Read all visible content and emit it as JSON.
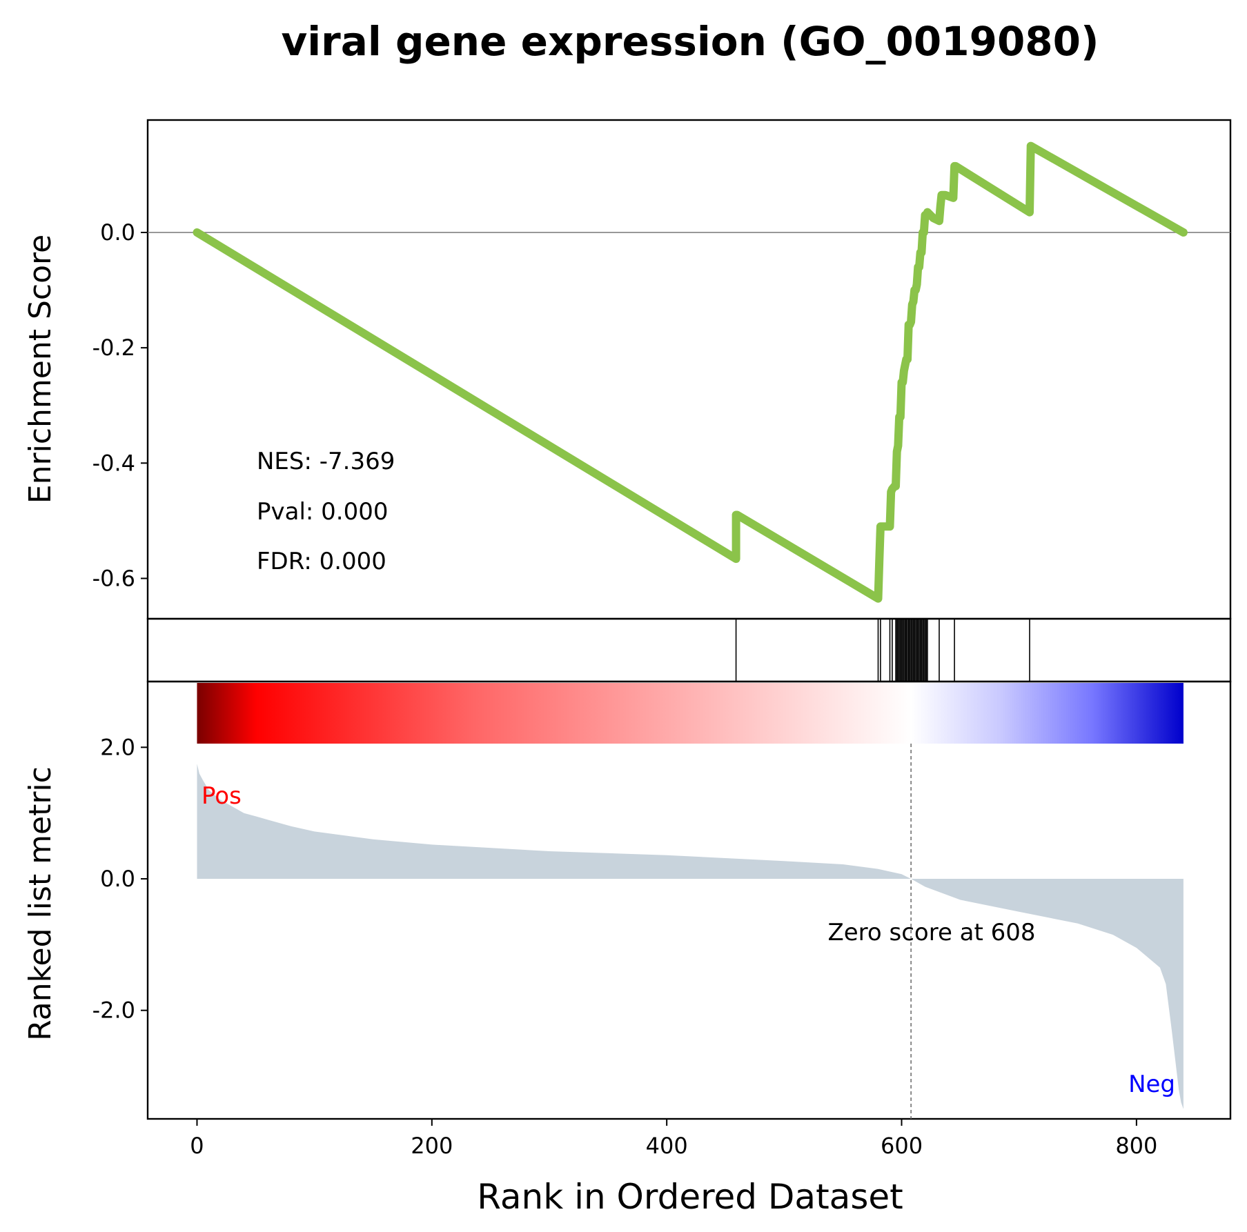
{
  "chart_data": {
    "type": "line",
    "title": "viral gene expression (GO_0019080)",
    "xlabel": "Rank in Ordered Dataset",
    "xlim": [
      -42,
      880
    ],
    "xticks": [
      "0",
      "200",
      "400",
      "600",
      "800"
    ],
    "n_genes": 840,
    "es_panel": {
      "ylabel": "Enrichment Score",
      "ylim": [
        -0.67,
        0.195
      ],
      "yticks": [
        "0.0",
        "-0.2",
        "-0.4",
        "-0.6"
      ],
      "color": "#8bc34a",
      "series": {
        "name": "",
        "x": [
          0,
          459,
          459,
          460,
          580,
          580,
          581,
          582,
          582,
          583,
          590,
          591,
          592,
          592,
          594,
          595,
          596,
          596,
          597,
          598,
          599,
          600,
          601,
          602,
          603,
          604,
          605,
          606,
          607,
          608,
          609,
          610,
          611,
          612,
          613,
          614,
          615,
          616,
          617,
          618,
          619,
          620,
          621,
          622,
          627,
          632,
          633,
          634,
          637,
          644,
          645,
          646,
          646,
          709,
          709,
          710,
          840
        ],
        "y": [
          0.0,
          -0.566,
          -0.49,
          -0.49,
          -0.635,
          -0.635,
          -0.57,
          -0.51,
          -0.51,
          -0.51,
          -0.51,
          -0.45,
          -0.445,
          -0.445,
          -0.44,
          -0.44,
          -0.38,
          -0.38,
          -0.37,
          -0.32,
          -0.32,
          -0.26,
          -0.26,
          -0.24,
          -0.23,
          -0.22,
          -0.22,
          -0.16,
          -0.16,
          -0.155,
          -0.125,
          -0.12,
          -0.1,
          -0.1,
          -0.09,
          -0.06,
          -0.06,
          -0.035,
          -0.035,
          0.0,
          0.0,
          0.03,
          0.03,
          0.035,
          0.025,
          0.02,
          0.045,
          0.065,
          0.065,
          0.06,
          0.115,
          0.115,
          0.115,
          0.035,
          0.035,
          0.15,
          0.0
        ]
      },
      "zero_line": 0.0,
      "annotations": [
        "NES: -7.369",
        "Pval: 0.000",
        "FDR: 0.000"
      ]
    },
    "hits_panel": {
      "hit_ranks": [
        459,
        580,
        582,
        590,
        592,
        595,
        596,
        597,
        598,
        599,
        600,
        601,
        602,
        603,
        604,
        605,
        606,
        607,
        608,
        609,
        610,
        611,
        612,
        613,
        614,
        615,
        616,
        617,
        618,
        619,
        620,
        621,
        622,
        632,
        645,
        709
      ]
    },
    "rank_panel": {
      "ylabel": "Ranked list metric",
      "ylim": [
        -3.65,
        3.0
      ],
      "yticks": [
        "2.0",
        "0.0",
        "-2.0"
      ],
      "area_color": "#c8d3dc",
      "metric_x": [
        0,
        2,
        5,
        10,
        20,
        30,
        40,
        50,
        60,
        80,
        100,
        150,
        200,
        300,
        400,
        500,
        550,
        580,
        600,
        608,
        620,
        650,
        700,
        750,
        780,
        800,
        810,
        820,
        825,
        830,
        832,
        834,
        836,
        838,
        840
      ],
      "metric_y": [
        1.75,
        1.6,
        1.5,
        1.35,
        1.2,
        1.1,
        1.0,
        0.95,
        0.9,
        0.8,
        0.72,
        0.6,
        0.52,
        0.42,
        0.36,
        0.27,
        0.22,
        0.15,
        0.07,
        0.0,
        -0.12,
        -0.32,
        -0.5,
        -0.68,
        -0.85,
        -1.05,
        -1.2,
        -1.35,
        -1.6,
        -2.3,
        -2.6,
        -2.9,
        -3.2,
        -3.4,
        -3.5
      ],
      "zero_score_rank": 608,
      "zero_score_label": "Zero score at 608",
      "pos_label": "Pos",
      "neg_label": "Neg",
      "pos_color": "#ff0000",
      "neg_color": "#0000ff",
      "colorbar_stops": [
        "#7a0000",
        "#ff0000",
        "#ff6666",
        "#ffb3b3",
        "#ffffff",
        "#c8c8ff",
        "#7777ff",
        "#0000cc"
      ]
    }
  }
}
